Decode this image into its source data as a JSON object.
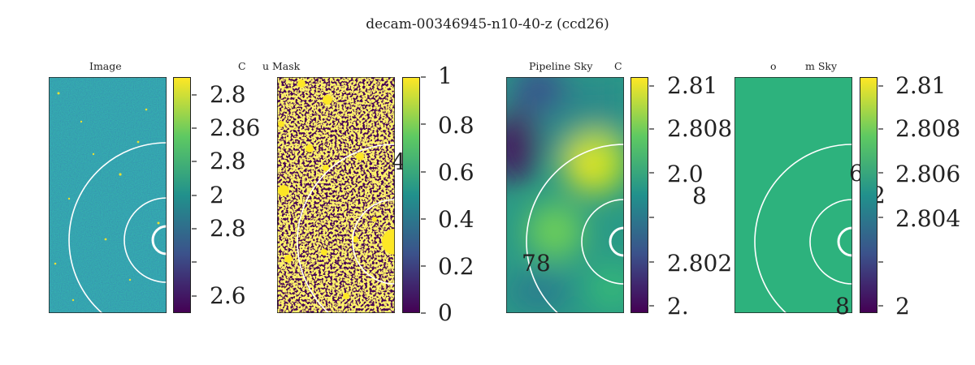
{
  "title": "decam-00346945-n10-40-z (ccd26)",
  "panels": [
    {
      "title": "Image",
      "extra": "C",
      "ticks": [
        "2.8",
        "2.86",
        "2.8",
        "2",
        "2.8",
        "2.6"
      ]
    },
    {
      "title": "Mask",
      "extra": "u",
      "ticks": [
        "1",
        "0.8",
        "0.6",
        "0.4",
        "0.2",
        "0"
      ]
    },
    {
      "title": "Pipeline Sky",
      "extra": "C",
      "ticks": [
        "2.81",
        "2.808",
        "2.0",
        "2.802",
        "2."
      ]
    },
    {
      "title": "m Sky",
      "extra": "o",
      "ticks": [
        "2.81",
        "2.808",
        "2.806",
        "2.804",
        "2"
      ]
    }
  ],
  "stray_labels": [
    "4",
    "8",
    "78",
    "6",
    "2",
    "8"
  ],
  "colormap": [
    "#440154",
    "#3b528b",
    "#21918c",
    "#5ec962",
    "#fde725"
  ]
}
